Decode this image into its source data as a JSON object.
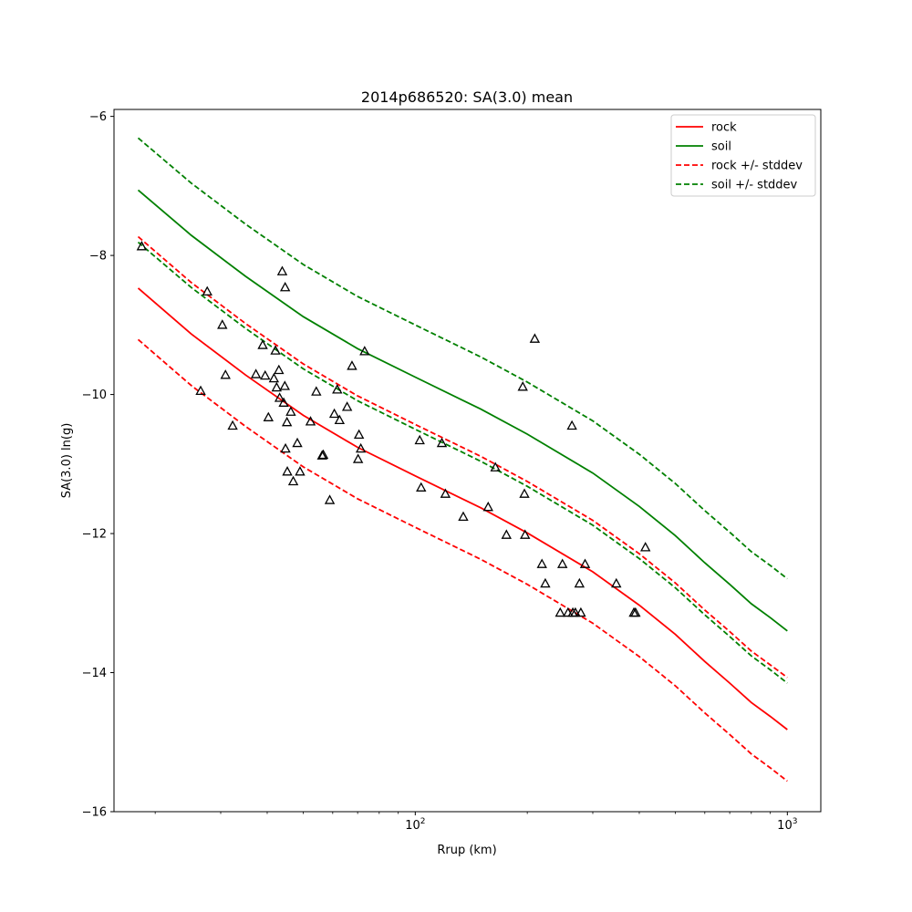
{
  "chart_data": {
    "type": "line",
    "title": "2014p686520: SA(3.0) mean",
    "xlabel": "Rrup (km)",
    "ylabel": "SA(3.0) ln(g)",
    "xscale": "log",
    "xlim": [
      15.5,
      1230
    ],
    "ylim": [
      -16.0,
      -5.9
    ],
    "xticks": [
      {
        "value": 100,
        "base": "10",
        "exp": "2"
      },
      {
        "value": 1000,
        "base": "10",
        "exp": "3"
      }
    ],
    "yticks": [
      {
        "value": -16,
        "label": "−16"
      },
      {
        "value": -14,
        "label": "−14"
      },
      {
        "value": -12,
        "label": "−12"
      },
      {
        "value": -10,
        "label": "−10"
      },
      {
        "value": -8,
        "label": "−8"
      },
      {
        "value": -6,
        "label": "−6"
      }
    ],
    "grid": false,
    "legend_position": "top-right",
    "series": [
      {
        "name": "rock",
        "color": "#ff0000",
        "style": "solid",
        "x": [
          18,
          25,
          35,
          50,
          70,
          100,
          150,
          200,
          300,
          400,
          500,
          600,
          700,
          800,
          900,
          1000
        ],
        "y": [
          -8.47,
          -9.13,
          -9.72,
          -10.3,
          -10.76,
          -11.17,
          -11.63,
          -11.99,
          -12.55,
          -13.03,
          -13.45,
          -13.84,
          -14.15,
          -14.43,
          -14.63,
          -14.82
        ]
      },
      {
        "name": "soil",
        "color": "#008000",
        "style": "solid",
        "x": [
          18,
          25,
          35,
          50,
          70,
          100,
          150,
          200,
          300,
          400,
          500,
          600,
          700,
          800,
          900,
          1000
        ],
        "y": [
          -7.06,
          -7.71,
          -8.3,
          -8.88,
          -9.34,
          -9.75,
          -10.21,
          -10.57,
          -11.13,
          -11.61,
          -12.03,
          -12.42,
          -12.73,
          -13.01,
          -13.21,
          -13.4
        ]
      },
      {
        "name": "rock +/- stddev",
        "color": "#ff0000",
        "style": "dashed",
        "x": [
          18,
          25,
          35,
          50,
          70,
          100,
          150,
          200,
          300,
          400,
          500,
          600,
          700,
          800,
          900,
          1000
        ],
        "y": [
          -7.73,
          -8.39,
          -8.98,
          -9.56,
          -10.02,
          -10.43,
          -10.89,
          -11.25,
          -11.81,
          -12.29,
          -12.71,
          -13.1,
          -13.41,
          -13.69,
          -13.89,
          -14.07
        ]
      },
      {
        "name": "",
        "color": "#ff0000",
        "style": "dashed",
        "x": [
          18,
          25,
          35,
          50,
          70,
          100,
          150,
          200,
          300,
          400,
          500,
          600,
          700,
          800,
          900,
          1000
        ],
        "y": [
          -9.21,
          -9.87,
          -10.46,
          -11.04,
          -11.5,
          -11.91,
          -12.37,
          -12.73,
          -13.29,
          -13.77,
          -14.19,
          -14.58,
          -14.89,
          -15.17,
          -15.37,
          -15.56
        ]
      },
      {
        "name": "soil +/- stddev",
        "color": "#008000",
        "style": "dashed",
        "x": [
          18,
          25,
          35,
          50,
          70,
          100,
          150,
          200,
          300,
          400,
          500,
          600,
          700,
          800,
          900,
          1000
        ],
        "y": [
          -6.31,
          -6.96,
          -7.55,
          -8.13,
          -8.59,
          -9.0,
          -9.46,
          -9.82,
          -10.38,
          -10.86,
          -11.28,
          -11.67,
          -11.98,
          -12.26,
          -12.46,
          -12.65
        ]
      },
      {
        "name": "",
        "color": "#008000",
        "style": "dashed",
        "x": [
          18,
          25,
          35,
          50,
          70,
          100,
          150,
          200,
          300,
          400,
          500,
          600,
          700,
          800,
          900,
          1000
        ],
        "y": [
          -7.81,
          -8.46,
          -9.05,
          -9.63,
          -10.09,
          -10.5,
          -10.96,
          -11.32,
          -11.88,
          -12.36,
          -12.78,
          -13.17,
          -13.48,
          -13.76,
          -13.96,
          -14.15
        ]
      }
    ],
    "observations": {
      "marker": "triangle",
      "color": "#000000",
      "x": [
        18.4,
        26.5,
        27.6,
        30.3,
        30.9,
        32.3,
        37.3,
        38.9,
        39.5,
        40.3,
        41.7,
        42.1,
        42.4,
        43.0,
        43.2,
        43.9,
        44.3,
        44.6,
        44.7,
        44.8,
        45.2,
        45.3,
        46.3,
        47.0,
        48.2,
        49.0,
        52.3,
        54.2,
        56.2,
        56.6,
        58.9,
        60.6,
        61.7,
        62.6,
        65.6,
        67.6,
        70.2,
        70.6,
        71.4,
        73.1,
        102.8,
        103.7,
        117.9,
        120.5,
        134.6,
        157.0,
        164.2,
        175.8,
        194.5,
        196.5,
        197.3,
        209.5,
        219.0,
        223.6,
        245.2,
        248.6,
        257.3,
        263.7,
        265.1,
        269.3,
        276.2,
        278.6,
        286.0,
        347.0,
        386.8,
        390.8,
        415.5
      ],
      "y": [
        -7.87,
        -9.95,
        -8.52,
        -9.0,
        -9.72,
        -10.45,
        -9.71,
        -9.29,
        -9.73,
        -10.33,
        -9.77,
        -9.37,
        -9.9,
        -9.65,
        -10.05,
        -8.23,
        -10.12,
        -9.88,
        -8.46,
        -10.78,
        -10.4,
        -11.11,
        -10.25,
        -11.25,
        -10.7,
        -11.11,
        -10.39,
        -9.96,
        -10.88,
        -10.87,
        -11.52,
        -10.28,
        -9.93,
        -10.37,
        -10.18,
        -9.59,
        -10.93,
        -10.58,
        -10.78,
        -9.38,
        -10.66,
        -11.34,
        -10.7,
        -11.43,
        -11.76,
        -11.62,
        -11.05,
        -12.02,
        -9.89,
        -11.43,
        -12.02,
        -9.2,
        -12.44,
        -12.72,
        -13.14,
        -12.44,
        -13.14,
        -10.45,
        -13.14,
        -13.14,
        -12.72,
        -13.14,
        -12.44,
        -12.72,
        -13.14,
        -13.14,
        -12.2
      ]
    }
  }
}
